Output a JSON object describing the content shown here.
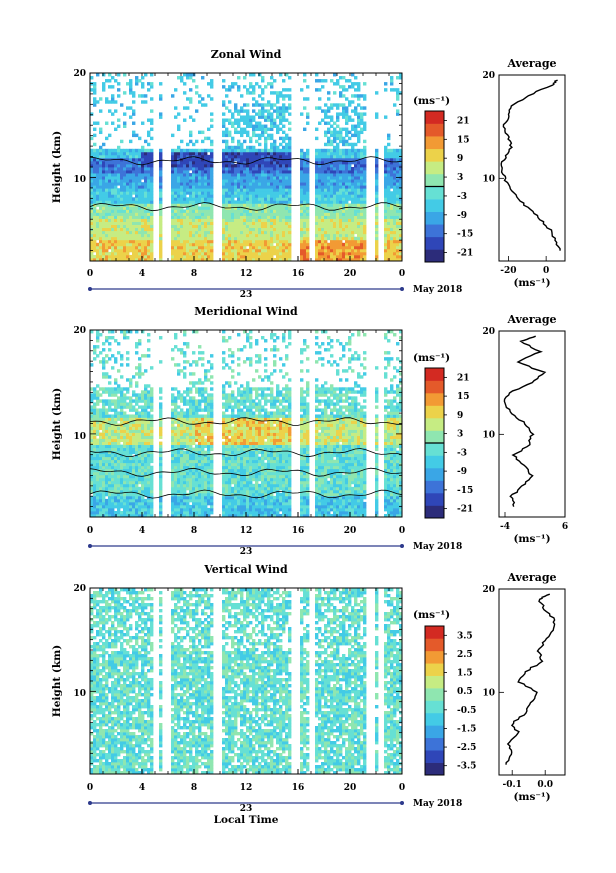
{
  "colors": {
    "scale": [
      "#2c2c7a",
      "#2f46b8",
      "#3d73d8",
      "#3aa6e6",
      "#43cbe6",
      "#66e0d4",
      "#8fe6b0",
      "#c6ec83",
      "#ecd24a",
      "#f29a34",
      "#e45a2a",
      "#d32a22"
    ],
    "axis": "#000000",
    "datebar": "#2d3a8c"
  },
  "x_ticks": [
    "0",
    "4",
    "8",
    "12",
    "16",
    "20",
    "0"
  ],
  "y_ticks": [
    "20",
    "10"
  ],
  "ylabel": "Height (km)",
  "xlabel": "Local Time",
  "day_label": "23",
  "month_label": "May 2018",
  "unit_label": "(ms⁻¹)",
  "avg_title": "Average",
  "chart_data": [
    {
      "type": "heatmap",
      "title": "Zonal Wind",
      "x_range": [
        0,
        24
      ],
      "y_range": [
        2,
        20
      ],
      "colorbar_ticks": [
        "21",
        "15",
        "9",
        "3",
        "-3",
        "-9",
        "-15",
        "-21"
      ],
      "colorbar_range": [
        -24,
        24
      ],
      "profile": {
        "title": "Average",
        "x_ticks": [
          "-20",
          "0"
        ],
        "x_range": [
          -25,
          10
        ],
        "y": [
          3,
          4,
          5,
          6,
          7,
          8,
          9,
          10,
          11,
          12,
          13,
          14,
          15,
          16,
          17,
          18,
          19,
          19.5
        ],
        "x": [
          8,
          5,
          2,
          -3,
          -9,
          -15,
          -19,
          -22,
          -24,
          -22,
          -18,
          -20,
          -23,
          -20,
          -18,
          -10,
          3,
          6
        ]
      }
    },
    {
      "type": "heatmap",
      "title": "Meridional Wind",
      "x_range": [
        0,
        24
      ],
      "y_range": [
        2,
        20
      ],
      "colorbar_ticks": [
        "21",
        "15",
        "9",
        "3",
        "-3",
        "-9",
        "-15",
        "-21"
      ],
      "colorbar_range": [
        -24,
        24
      ],
      "profile": {
        "title": "Average",
        "x_ticks": [
          "-4",
          "6"
        ],
        "x_range": [
          -5,
          6
        ],
        "y": [
          3,
          4,
          5,
          6,
          7,
          8,
          9,
          10,
          11,
          12,
          13,
          14,
          15,
          16,
          17,
          18,
          19,
          19.5
        ],
        "x": [
          -2.5,
          -3,
          -1,
          0.5,
          -1,
          -2.5,
          0,
          0.5,
          -0.5,
          -3,
          -4,
          -3.5,
          0.5,
          2.5,
          -2,
          2,
          -1.5,
          1
        ]
      }
    },
    {
      "type": "heatmap",
      "title": "Vertical Wind",
      "x_range": [
        0,
        24
      ],
      "y_range": [
        2,
        20
      ],
      "colorbar_ticks": [
        "3.5",
        "2.5",
        "1.5",
        "0.5",
        "-0.5",
        "-1.5",
        "-2.5",
        "-3.5"
      ],
      "colorbar_range": [
        -4,
        4
      ],
      "profile": {
        "title": "Average",
        "x_ticks": [
          "-0.1",
          "0.0"
        ],
        "x_range": [
          -0.14,
          0.06
        ],
        "y": [
          3,
          4,
          5,
          6,
          7,
          8,
          9,
          10,
          11,
          12,
          13,
          14,
          15,
          16,
          17,
          18,
          19,
          19.5
        ],
        "x": [
          -0.12,
          -0.1,
          -0.11,
          -0.08,
          -0.1,
          -0.06,
          -0.04,
          -0.02,
          -0.08,
          -0.06,
          -0.01,
          -0.02,
          0.0,
          0.02,
          0.03,
          0.0,
          -0.02,
          0.01
        ]
      }
    }
  ]
}
